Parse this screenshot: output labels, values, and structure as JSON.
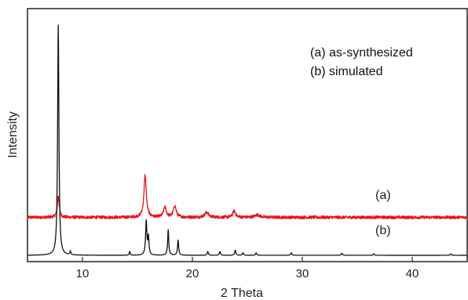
{
  "chart_data": {
    "type": "line",
    "xlabel": "2 Theta",
    "ylabel": "Intensity",
    "xlim": [
      5,
      45
    ],
    "ylim": [
      0,
      100
    ],
    "x_ticks": [
      10,
      20,
      30,
      40
    ],
    "grid": false,
    "legend_position": "top-right",
    "legend": [
      "(a) as-synthesized",
      "(b) simulated"
    ],
    "series": [
      {
        "label": "(a)",
        "color": "#e8141b",
        "baseline": 17.5,
        "noise": 0.6,
        "peaks": [
          {
            "x": 7.8,
            "height": 8.5,
            "width": 0.1
          },
          {
            "x": 15.7,
            "height": 16.5,
            "width": 0.13
          },
          {
            "x": 17.5,
            "height": 4.0,
            "width": 0.15
          },
          {
            "x": 18.4,
            "height": 4.5,
            "width": 0.15
          },
          {
            "x": 21.3,
            "height": 2.0,
            "width": 0.2
          },
          {
            "x": 23.8,
            "height": 2.5,
            "width": 0.15
          },
          {
            "x": 25.9,
            "height": 1.0,
            "width": 0.25
          }
        ]
      },
      {
        "label": "(b)",
        "color": "#111111",
        "baseline": 2.5,
        "noise": 0,
        "peaks": [
          {
            "x": 7.8,
            "height": 91,
            "width": 0.07
          },
          {
            "x": 8.9,
            "height": 1.5,
            "width": 0.05
          },
          {
            "x": 14.3,
            "height": 1.5,
            "width": 0.05
          },
          {
            "x": 15.8,
            "height": 13.5,
            "width": 0.07
          },
          {
            "x": 16.0,
            "height": 7,
            "width": 0.06
          },
          {
            "x": 17.8,
            "height": 10,
            "width": 0.06
          },
          {
            "x": 18.7,
            "height": 6,
            "width": 0.06
          },
          {
            "x": 21.4,
            "height": 1.5,
            "width": 0.06
          },
          {
            "x": 22.5,
            "height": 1.5,
            "width": 0.06
          },
          {
            "x": 23.9,
            "height": 2,
            "width": 0.06
          },
          {
            "x": 24.6,
            "height": 1,
            "width": 0.06
          },
          {
            "x": 25.8,
            "height": 1,
            "width": 0.06
          },
          {
            "x": 29.0,
            "height": 1,
            "width": 0.06
          },
          {
            "x": 33.6,
            "height": 0.8,
            "width": 0.06
          },
          {
            "x": 36.5,
            "height": 0.6,
            "width": 0.06
          },
          {
            "x": 43.5,
            "height": 0.6,
            "width": 0.06
          }
        ]
      }
    ]
  }
}
